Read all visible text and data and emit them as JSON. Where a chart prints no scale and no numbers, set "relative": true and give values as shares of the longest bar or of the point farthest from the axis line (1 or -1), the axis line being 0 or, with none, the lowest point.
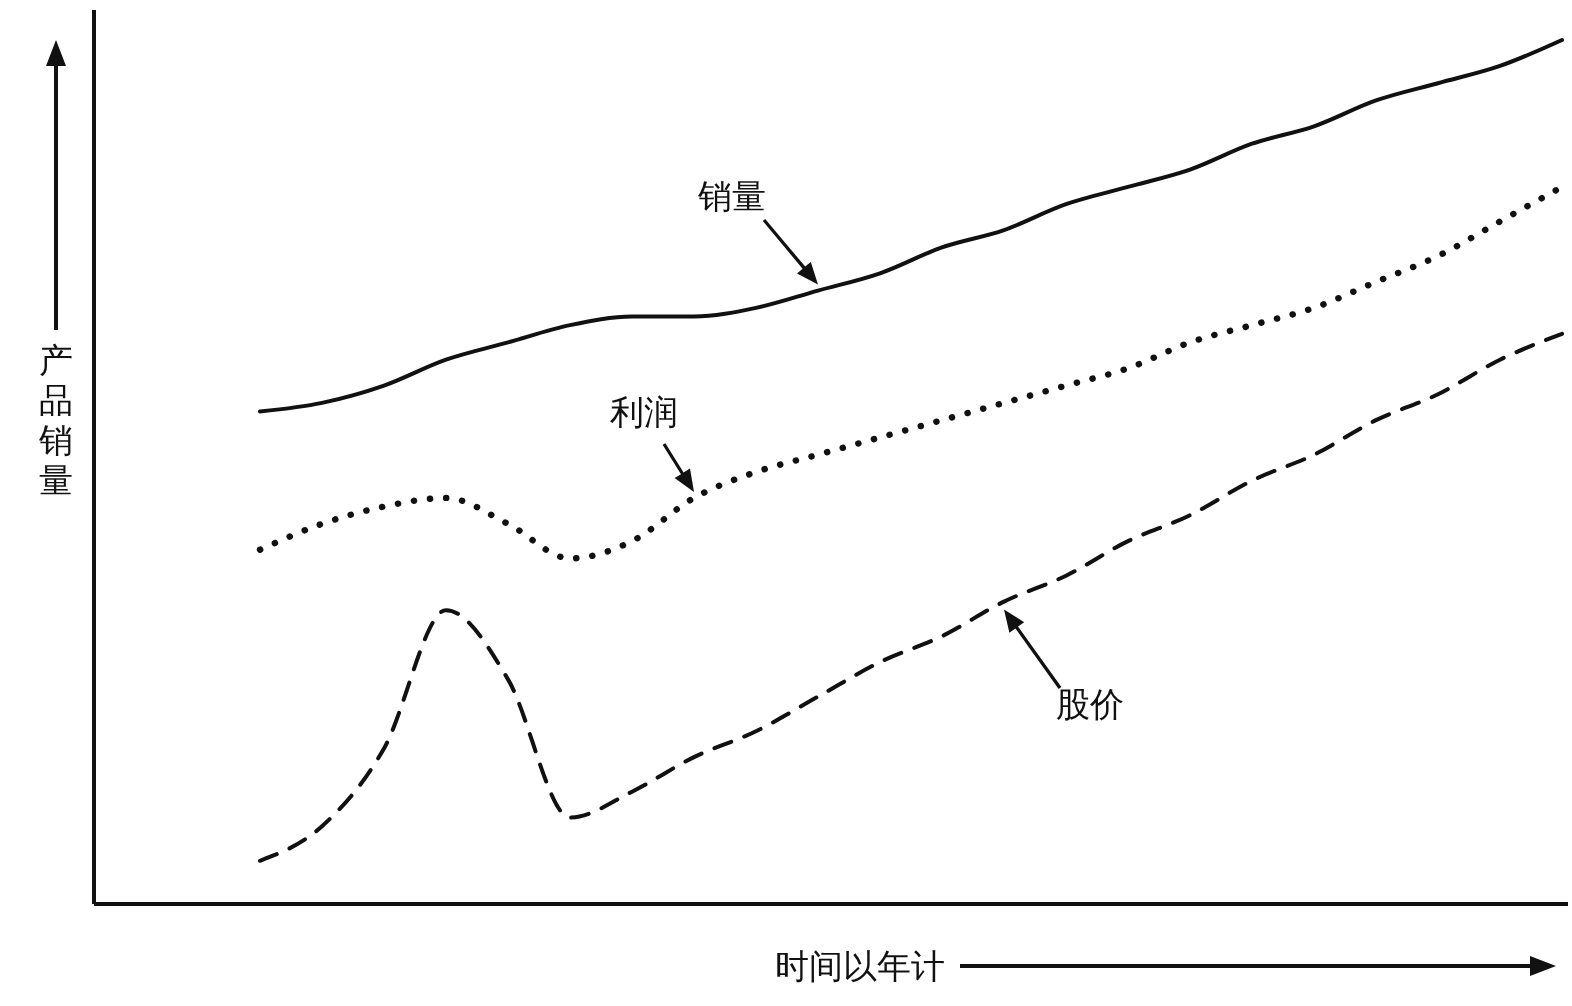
{
  "chart_data": {
    "type": "line",
    "relative": true,
    "xlabel": "时间以年计",
    "ylabel": "产品销量",
    "categories": [
      null,
      null,
      null,
      null,
      null,
      null,
      null,
      null,
      null,
      null,
      null,
      null,
      null,
      null,
      null,
      null,
      null,
      null,
      null,
      null,
      null,
      null
    ],
    "series": [
      {
        "name": "销量",
        "color": "#111111",
        "line_style": "solid",
        "values": [
          0.57,
          0.58,
          0.6,
          0.63,
          0.65,
          0.67,
          0.68,
          0.68,
          0.69,
          0.71,
          0.73,
          0.76,
          0.78,
          0.81,
          0.83,
          0.85,
          0.88,
          0.9,
          0.93,
          0.95,
          0.97,
          1
        ]
      },
      {
        "name": "利润",
        "color": "#111111",
        "line_style": "dotted",
        "values": [
          0.41,
          0.44,
          0.46,
          0.47,
          0.44,
          0.4,
          0.42,
          0.47,
          0.5,
          0.52,
          0.54,
          0.56,
          0.58,
          0.6,
          0.62,
          0.65,
          0.67,
          0.69,
          0.72,
          0.75,
          0.79,
          0.83
        ]
      },
      {
        "name": "股价",
        "color": "#111111",
        "line_style": "dashed",
        "values": [
          0.05,
          0.09,
          0.18,
          0.34,
          0.26,
          0.1,
          0.13,
          0.17,
          0.2,
          0.24,
          0.28,
          0.31,
          0.35,
          0.38,
          0.42,
          0.45,
          0.49,
          0.52,
          0.56,
          0.59,
          0.63,
          0.66
        ]
      }
    ]
  }
}
